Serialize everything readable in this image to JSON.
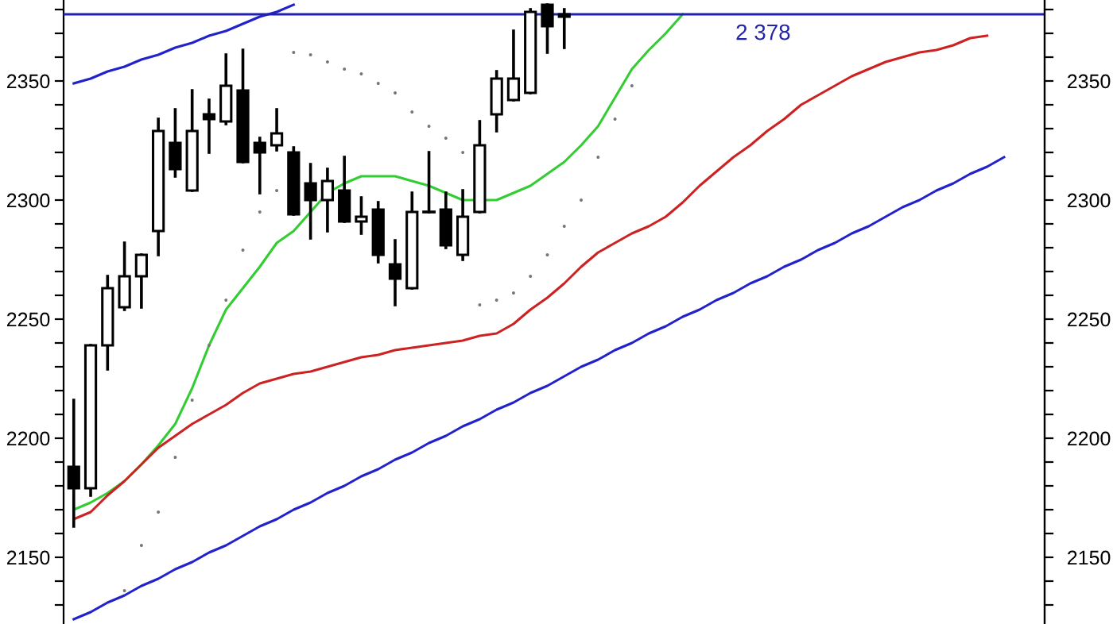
{
  "chart_data": {
    "type": "candlestick",
    "categories": [
      null,
      null,
      null,
      null,
      null,
      null,
      null,
      null,
      null,
      null,
      null,
      null,
      null,
      null,
      null,
      null,
      null,
      null,
      null,
      null,
      null,
      null,
      null,
      null,
      null,
      null,
      null,
      null,
      null,
      null,
      null,
      null,
      null,
      null,
      null,
      null,
      null,
      null,
      null,
      null,
      null,
      null,
      null,
      null,
      null,
      null,
      null,
      null,
      null,
      null,
      null,
      null,
      null,
      null,
      null,
      null,
      null
    ],
    "ohlc": [
      [
        2188,
        2216,
        2163,
        2179
      ],
      [
        2179,
        2239,
        2176,
        2239
      ],
      [
        2239,
        2268,
        2229,
        2263
      ],
      [
        2255,
        2282,
        2254,
        2268
      ],
      [
        2268,
        2277,
        2255,
        2277
      ],
      [
        2287,
        2334,
        2277,
        2329
      ],
      [
        2324,
        2338,
        2310,
        2313
      ],
      [
        2304,
        2346,
        2304,
        2329
      ],
      [
        2336,
        2342,
        2320,
        2334
      ],
      [
        2333,
        2361,
        2332,
        2348
      ],
      [
        2346,
        2363,
        2316,
        2316
      ],
      [
        2324,
        2326,
        2303,
        2320
      ],
      [
        2323,
        2338,
        2321,
        2328
      ],
      [
        2320,
        2322,
        2294,
        2294
      ],
      [
        2307,
        2315,
        2284,
        2300
      ],
      [
        2300,
        2313,
        2287,
        2308
      ],
      [
        2304,
        2318,
        2291,
        2291
      ],
      [
        2291,
        2301,
        2286,
        2293
      ],
      [
        2296,
        2299,
        2274,
        2277
      ],
      [
        2273,
        2283,
        2256,
        2267
      ],
      [
        2263,
        2303,
        2263,
        2295
      ],
      [
        2295,
        2320,
        2295,
        2295
      ],
      [
        2296,
        2303,
        2280,
        2281
      ],
      [
        2277,
        2304,
        2275,
        2293
      ],
      [
        2295,
        2333,
        2295,
        2323
      ],
      [
        2336,
        2354,
        2329,
        2351
      ],
      [
        2342,
        2371,
        2342,
        2351
      ],
      [
        2345,
        2380,
        2345,
        2379
      ],
      [
        2382,
        2382,
        2362,
        2373
      ],
      [
        2377,
        2380,
        2364,
        2378
      ],
      null,
      null,
      null,
      null,
      null,
      null,
      null,
      null,
      null,
      null,
      null,
      null,
      null,
      null,
      null,
      null,
      null,
      null,
      null,
      null,
      null,
      null,
      null,
      null,
      null,
      null,
      null
    ],
    "series": [
      {
        "type": "line",
        "color": "#33cc33",
        "values": [
          2170,
          2173,
          2177,
          2182,
          2189,
          2197,
          2206,
          2221,
          2239,
          2254,
          2263,
          2272,
          2282,
          2287,
          2295,
          2303,
          2307,
          2310,
          2310,
          2310,
          2308,
          2306,
          2303,
          2300,
          null,
          2300,
          2303,
          2306,
          2311,
          2316,
          2323,
          2331,
          2343,
          2355,
          2363,
          2370,
          2378,
          null,
          null,
          null,
          null,
          null,
          null,
          null,
          null,
          null,
          null,
          null,
          null,
          null,
          null,
          null,
          null,
          null,
          null,
          null,
          null
        ]
      },
      {
        "type": "line",
        "color": "#cc2222",
        "values": [
          2166,
          2169,
          2176,
          2182,
          2189,
          2196,
          2201,
          2206,
          2210,
          2214,
          2219,
          2223,
          2225,
          2227,
          2228,
          2230,
          2232,
          2234,
          2235,
          2237,
          2238,
          2239,
          2240,
          2241,
          2243,
          2244,
          2248,
          2254,
          2259,
          2265,
          2272,
          2278,
          2282,
          2286,
          2289,
          2293,
          2299,
          2306,
          2312,
          2318,
          2323,
          2329,
          2334,
          2340,
          2344,
          2348,
          2352,
          2355,
          2358,
          2360,
          2362,
          2363,
          2365,
          2368,
          2369,
          null,
          null
        ]
      },
      {
        "type": "line",
        "color": "#2222cc",
        "values": [
          2349,
          2351,
          2354,
          2356,
          2359,
          2361,
          2364,
          2366,
          2369,
          2371,
          2374,
          2377,
          2379,
          2382,
          null,
          null,
          null,
          null,
          null,
          null,
          null,
          null,
          null,
          null,
          null,
          null,
          null,
          null,
          null,
          null,
          null,
          null,
          null,
          null,
          null,
          null,
          null,
          null,
          null,
          null,
          null,
          null,
          null,
          null,
          null,
          null,
          null,
          null,
          null,
          null,
          null,
          null,
          null,
          null,
          null,
          null,
          null
        ]
      },
      {
        "type": "line",
        "color": "#2222cc",
        "values": [
          2124,
          2127,
          2131,
          2134,
          2138,
          2141,
          2145,
          2148,
          2152,
          2155,
          2159,
          2163,
          2166,
          2170,
          2173,
          2177,
          2180,
          2184,
          2187,
          2191,
          2194,
          2198,
          2201,
          2205,
          2208,
          2212,
          2215,
          2219,
          2222,
          2226,
          2230,
          2233,
          2237,
          2240,
          2244,
          2247,
          2251,
          2254,
          2258,
          2261,
          2265,
          2268,
          2272,
          2275,
          2279,
          2282,
          2286,
          2289,
          2293,
          2297,
          2300,
          2304,
          2307,
          2311,
          2314,
          2318,
          null
        ]
      },
      {
        "type": "scatter",
        "color": "#777777",
        "marker": "circle",
        "values": [
          null,
          null,
          null,
          2136,
          2155,
          2169,
          2192,
          2216,
          2239,
          2258,
          2279,
          2295,
          2304,
          2362,
          2361,
          2358,
          2355,
          2353,
          2349,
          2345,
          2337,
          2331,
          2326,
          2320,
          2256,
          2258,
          2261,
          2268,
          2277,
          2289,
          2300,
          2318,
          2334,
          2348,
          null,
          null,
          null,
          null,
          null,
          null,
          null,
          null,
          null,
          null,
          null,
          null,
          null,
          null,
          null,
          null,
          null,
          null,
          null,
          null,
          null,
          null,
          null
        ]
      }
    ],
    "ref_lines": [
      {
        "axis": "y",
        "value": 2378,
        "label": "2 378",
        "color": "#2222aa"
      }
    ],
    "ylim": [
      2122,
      2384
    ],
    "yticks": [
      {
        "value": 2130,
        "label": null
      },
      {
        "value": 2140,
        "label": null
      },
      2150,
      {
        "value": 2160,
        "label": null
      },
      {
        "value": 2170,
        "label": null
      },
      {
        "value": 2180,
        "label": null
      },
      {
        "value": 2190,
        "label": null
      },
      2200,
      {
        "value": 2210,
        "label": null
      },
      {
        "value": 2220,
        "label": null
      },
      {
        "value": 2230,
        "label": null
      },
      {
        "value": 2240,
        "label": null
      },
      2250,
      {
        "value": 2260,
        "label": null
      },
      {
        "value": 2270,
        "label": null
      },
      {
        "value": 2280,
        "label": null
      },
      {
        "value": 2290,
        "label": null
      },
      2300,
      {
        "value": 2310,
        "label": null
      },
      {
        "value": 2320,
        "label": null
      },
      {
        "value": 2330,
        "label": null
      },
      {
        "value": 2340,
        "label": null
      },
      2350,
      {
        "value": 2360,
        "label": null
      },
      {
        "value": 2370,
        "label": null
      },
      {
        "value": 2380,
        "label": null
      }
    ],
    "y2lim": [
      2122,
      2384
    ],
    "y2ticks": [
      {
        "value": 2130,
        "label": null
      },
      {
        "value": 2140,
        "label": null
      },
      2150,
      {
        "value": 2160,
        "label": null
      },
      {
        "value": 2170,
        "label": null
      },
      {
        "value": 2180,
        "label": null
      },
      {
        "value": 2190,
        "label": null
      },
      2200,
      {
        "value": 2210,
        "label": null
      },
      {
        "value": 2220,
        "label": null
      },
      {
        "value": 2230,
        "label": null
      },
      {
        "value": 2240,
        "label": null
      },
      2250,
      {
        "value": 2260,
        "label": null
      },
      {
        "value": 2270,
        "label": null
      },
      {
        "value": 2280,
        "label": null
      },
      {
        "value": 2290,
        "label": null
      },
      2300,
      {
        "value": 2310,
        "label": null
      },
      {
        "value": 2320,
        "label": null
      },
      {
        "value": 2330,
        "label": null
      },
      {
        "value": 2340,
        "label": null
      },
      2350,
      {
        "value": 2360,
        "label": null
      },
      {
        "value": 2370,
        "label": null
      },
      {
        "value": 2380,
        "label": null
      }
    ],
    "grid": false
  }
}
